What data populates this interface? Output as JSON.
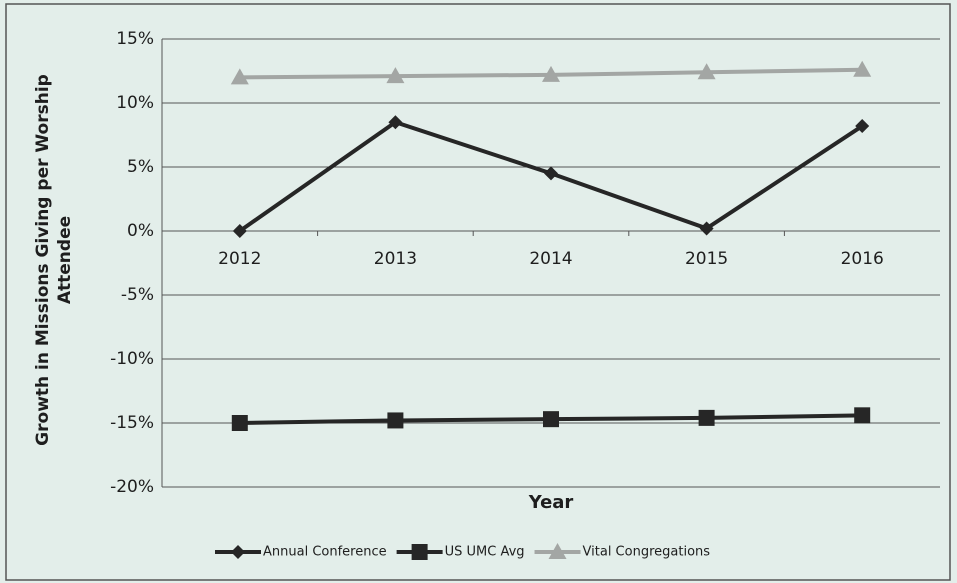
{
  "chart_data": {
    "type": "line",
    "y_label": "Growth in Missions Giving per Worship Attendee",
    "x_label": "Year",
    "categories": [
      "2012",
      "2013",
      "2014",
      "2015",
      "2016"
    ],
    "series": [
      {
        "name": "Annual Conference",
        "color": "#262626",
        "marker": "diamond",
        "values": [
          0,
          8.5,
          4.5,
          0.2,
          8.2
        ]
      },
      {
        "name": "US UMC Avg",
        "color": "#262626",
        "marker": "square",
        "values": [
          -15,
          -14.8,
          -14.7,
          -14.6,
          -14.4
        ]
      },
      {
        "name": "Vital Congregations",
        "color": "#a3a6a4",
        "marker": "triangle",
        "values": [
          12,
          12.1,
          12.2,
          12.4,
          12.6
        ]
      }
    ],
    "ylim": [
      -20,
      15
    ],
    "yticks": [
      {
        "value": -20,
        "label": "-20%"
      },
      {
        "value": -15,
        "label": "-15%"
      },
      {
        "value": -10,
        "label": "-10%"
      },
      {
        "value": -5,
        "label": "-5%"
      },
      {
        "value": 0,
        "label": "0%"
      },
      {
        "value": 5,
        "label": "5%"
      },
      {
        "value": 10,
        "label": "10%"
      },
      {
        "value": 15,
        "label": "15%"
      }
    ],
    "grid": true,
    "legend": "bottom"
  }
}
